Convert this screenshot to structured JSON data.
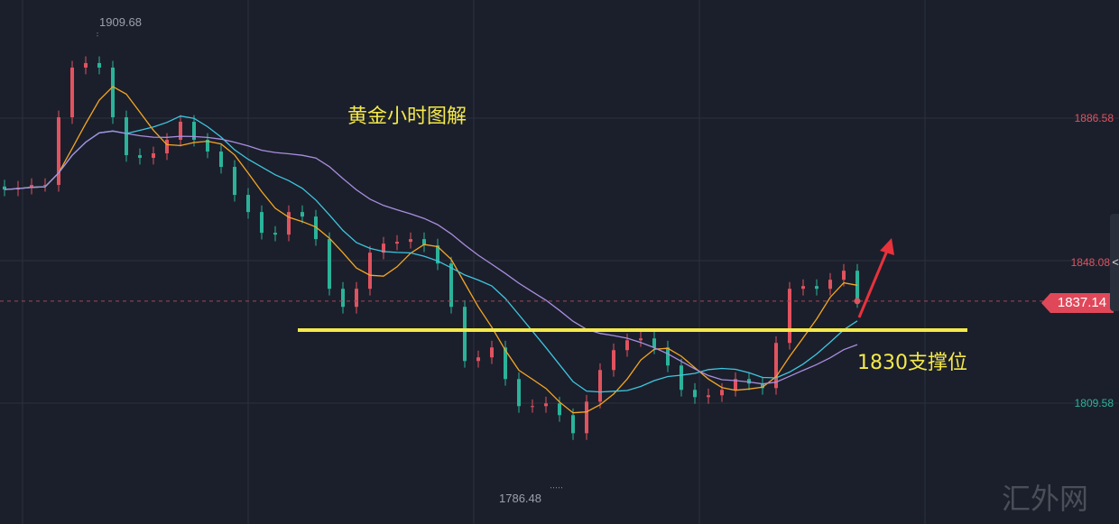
{
  "chart_data": {
    "type": "candlestick",
    "title": "",
    "timeframe": "hourly",
    "y_ticks": [
      1886.58,
      1848.08,
      1809.58
    ],
    "grid": true,
    "last_price": 1837.14,
    "max_label": "1909.68",
    "min_label": "1786.48",
    "closes": [
      1867.31,
      1867.8,
      1868.53,
      1868.53,
      1886.82,
      1900.24,
      1901.46,
      1900.24,
      1886.82,
      1876.58,
      1875.85,
      1877.07,
      1880.73,
      1885.6,
      1880.73,
      1877.56,
      1873.41,
      1865.85,
      1861.21,
      1855.6,
      1855.12,
      1861.21,
      1859.99,
      1853.9,
      1840.48,
      1835.6,
      1840.48,
      1850.24,
      1852.68,
      1853.17,
      1853.9,
      1852.19,
      1847.31,
      1835.6,
      1820.97,
      1821.95,
      1824.63,
      1816.09,
      1808.78,
      1808.78,
      1809.51,
      1806.34,
      1801.46,
      1809.99,
      1818.53,
      1823.9,
      1826.58,
      1827.07,
      1824.63,
      1819.75,
      1813.17,
      1811.21,
      1811.7,
      1813.17,
      1816.09,
      1814.87,
      1813.65,
      1825.85,
      1840.48,
      1841.21,
      1840.48,
      1842.92,
      1845.36,
      1837.14
    ],
    "moving_averages": [
      {
        "period": 5,
        "color": "#f5a623"
      },
      {
        "period": 10,
        "color": "#3ec6e0"
      },
      {
        "period": 20,
        "color": "#a98ee0"
      }
    ],
    "colors": {
      "up": "#e0535f",
      "down": "#2bb39a",
      "background": "#1b1f2b",
      "grid": "#2a303c",
      "support": "#f5e94a",
      "arrow": "#e8323c"
    },
    "annotations": {
      "title": "黄金小时图解",
      "support_level": 1830,
      "support_label": "1830支撑位",
      "arrow": "up"
    }
  },
  "watermark": "汇外网",
  "panel_toggle": "<"
}
